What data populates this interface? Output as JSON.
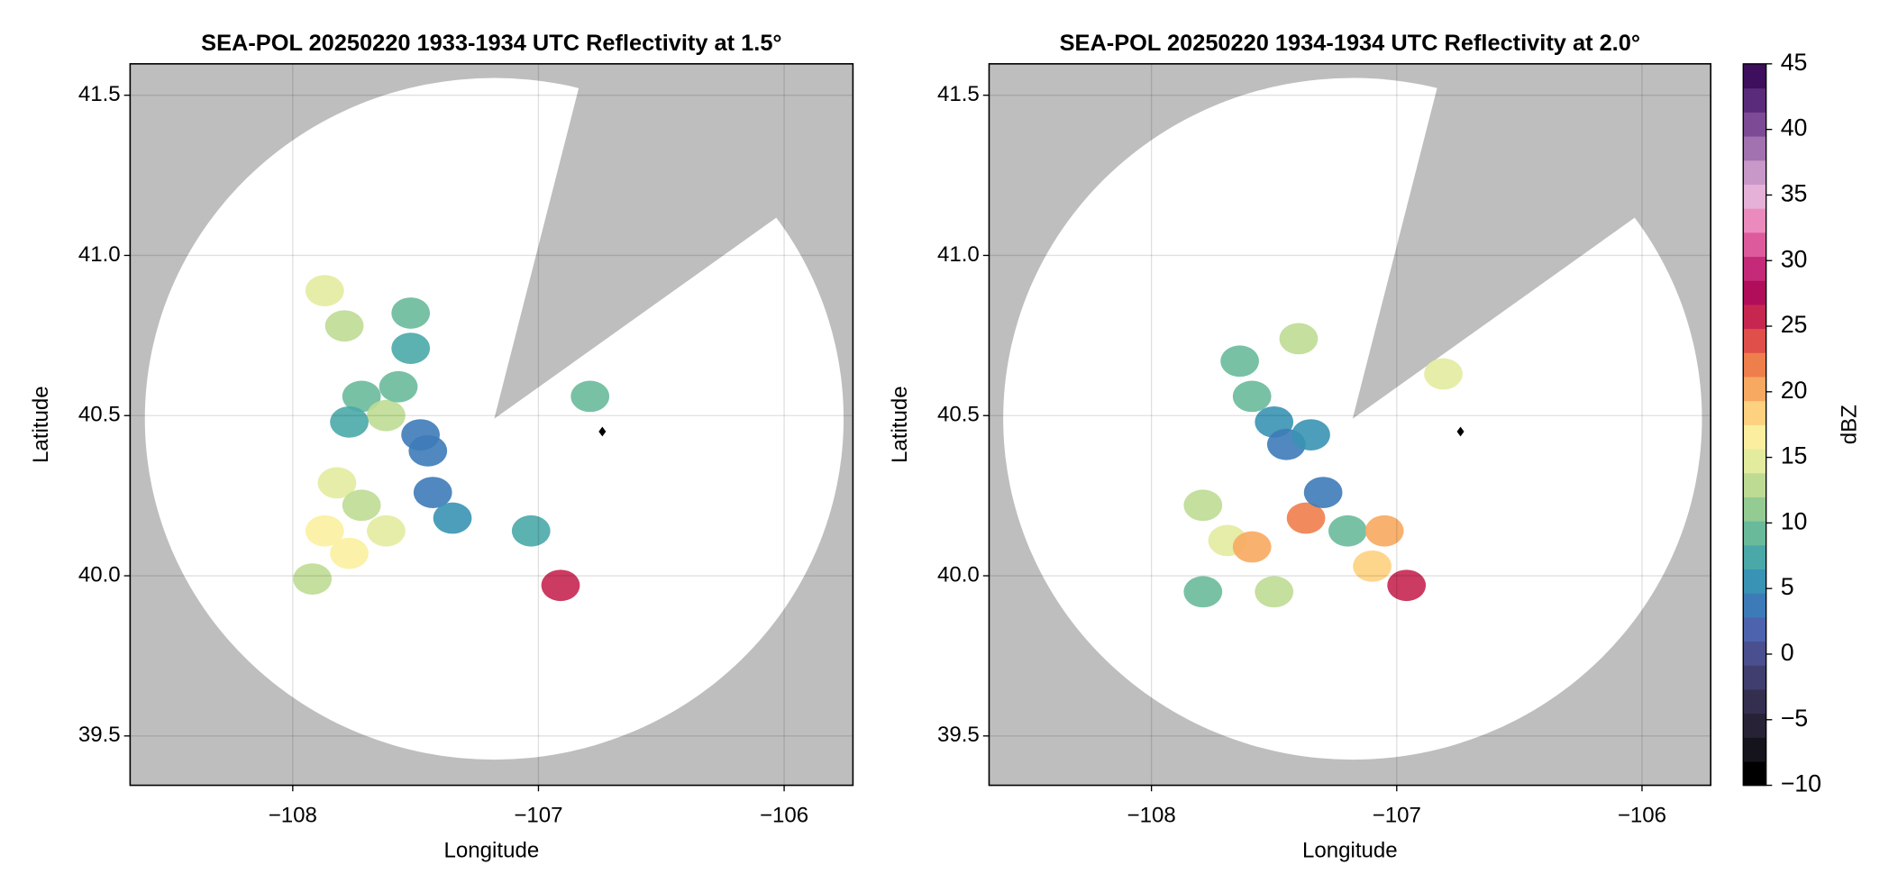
{
  "chart_data": [
    {
      "type": "radar",
      "title": "SEA-POL 20250220 1933-1934 UTC Reflectivity at 1.5°",
      "xlabel": "Longitude",
      "ylabel": "Latitude",
      "xlim": [
        -108.662,
        -105.72
      ],
      "ylim": [
        39.346,
        41.598
      ],
      "xticks": [
        {
          "value": -108,
          "label": "−108"
        },
        {
          "value": -107,
          "label": "−107"
        },
        {
          "value": -106,
          "label": "−106"
        }
      ],
      "yticks": [
        {
          "value": 39.5,
          "label": "39.5"
        },
        {
          "value": 40.0,
          "label": "40.0"
        },
        {
          "value": 40.5,
          "label": "40.5"
        },
        {
          "value": 41.0,
          "label": "41.0"
        },
        {
          "value": 41.5,
          "label": "41.5"
        }
      ],
      "grid": true,
      "x": [
        -107.72,
        -107.62,
        -107.77,
        -107.57,
        -107.48,
        -107.87,
        -107.79,
        -107.52,
        -107.52,
        -107.82,
        -107.72,
        -107.87,
        -107.77,
        -107.92,
        -107.62,
        -107.43,
        -107.35,
        -106.91,
        -107.03,
        -106.79,
        -107.45
      ],
      "y": [
        40.56,
        40.5,
        40.48,
        40.59,
        40.44,
        40.89,
        40.78,
        40.82,
        40.71,
        40.29,
        40.22,
        40.14,
        40.07,
        39.99,
        40.14,
        40.26,
        40.18,
        39.97,
        40.14,
        40.56,
        40.39
      ],
      "values": [
        10,
        12,
        8,
        9,
        4,
        14,
        12,
        10,
        8,
        14,
        12,
        16,
        17,
        13,
        15,
        4,
        6,
        25,
        8,
        10,
        3
      ]
    },
    {
      "type": "radar",
      "title": "SEA-POL 20250220 1934-1934 UTC Reflectivity at 2.0°",
      "xlabel": "Longitude",
      "ylabel": "Latitude",
      "xlim": [
        -108.662,
        -105.72
      ],
      "ylim": [
        39.346,
        41.598
      ],
      "xticks": [
        {
          "value": -108,
          "label": "−108"
        },
        {
          "value": -107,
          "label": "−107"
        },
        {
          "value": -106,
          "label": "−106"
        }
      ],
      "yticks": [
        {
          "value": 39.5,
          "label": "39.5"
        },
        {
          "value": 40.0,
          "label": "40.0"
        },
        {
          "value": 40.5,
          "label": "40.5"
        },
        {
          "value": 41.0,
          "label": "41.0"
        },
        {
          "value": 41.5,
          "label": "41.5"
        }
      ],
      "grid": true,
      "x": [
        -107.59,
        -107.5,
        -107.64,
        -107.4,
        -107.45,
        -107.79,
        -107.69,
        -107.59,
        -107.37,
        -107.2,
        -107.05,
        -106.96,
        -107.1,
        -107.5,
        -106.81,
        -107.79,
        -107.3,
        -107.35
      ],
      "y": [
        40.56,
        40.48,
        40.67,
        40.74,
        40.41,
        40.22,
        40.11,
        40.09,
        40.18,
        40.14,
        40.14,
        39.97,
        40.03,
        39.95,
        40.63,
        39.95,
        40.26,
        40.44
      ],
      "values": [
        9,
        6,
        10,
        12,
        4,
        12,
        14,
        20,
        22,
        10,
        20,
        25,
        18,
        12,
        14,
        10,
        3,
        5
      ]
    }
  ],
  "colorbar": {
    "label": "dBZ",
    "clim": [
      -10,
      45
    ],
    "ticks": [
      {
        "value": -10,
        "label": "−10"
      },
      {
        "value": -5,
        "label": "−5"
      },
      0,
      5,
      10,
      15,
      20,
      25,
      30,
      35,
      40,
      45
    ],
    "colors": [
      "#000000",
      "#15131c",
      "#272235",
      "#352f4f",
      "#3f3e6e",
      "#4a4f90",
      "#4d63ad",
      "#3d7bb8",
      "#3893b4",
      "#4aa8a8",
      "#69ba9b",
      "#94cb93",
      "#bedb94",
      "#e3eb9e",
      "#fbef9f",
      "#fdd17f",
      "#f8a961",
      "#ef7e4d",
      "#e04f4a",
      "#c72650",
      "#b00d5a",
      "#c52a78",
      "#dd5b9c",
      "#eb8bbd",
      "#e6b1d8",
      "#c798c8",
      "#a271b0",
      "#7d4a96",
      "#5b2b7b",
      "#3d0f5c"
    ]
  }
}
